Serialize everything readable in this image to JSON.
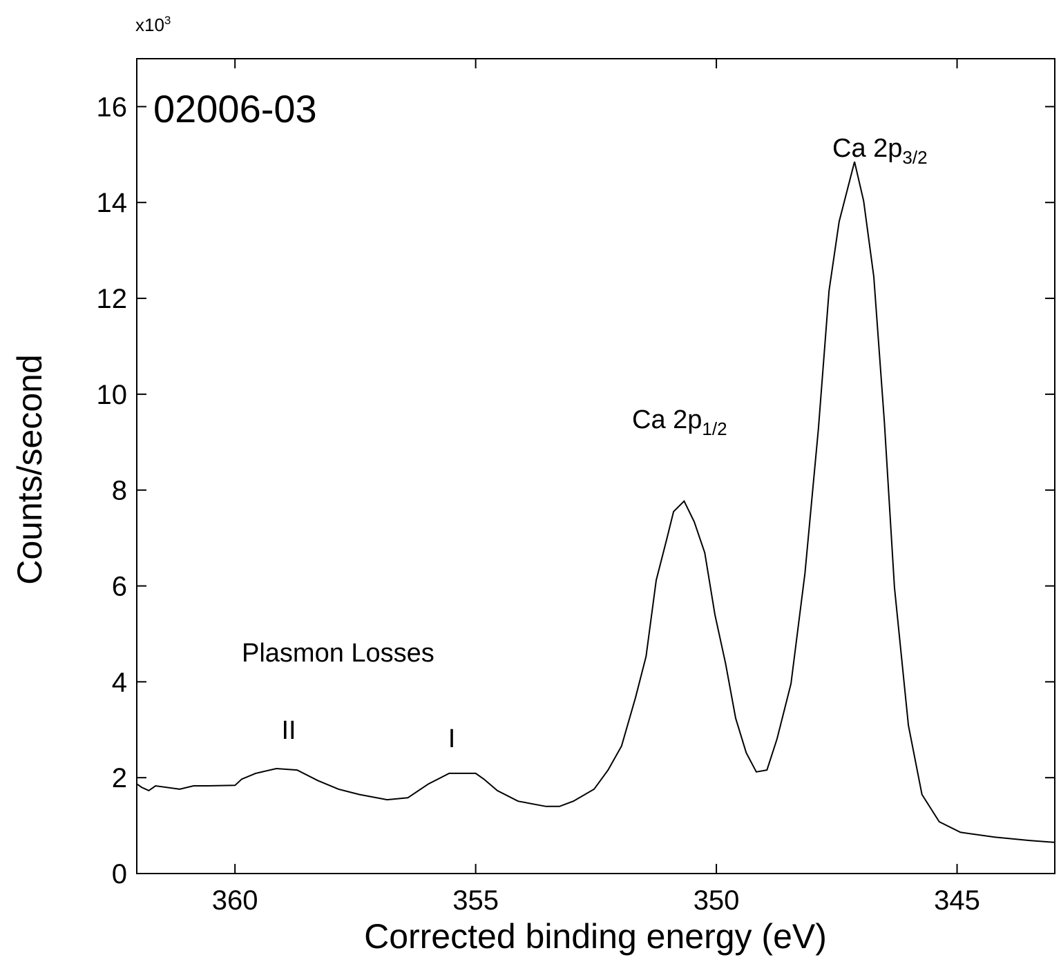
{
  "chart_data": {
    "type": "line",
    "title": "02006-03",
    "xlabel": "Corrected binding energy (eV)",
    "ylabel": "Counts/second",
    "y_multiplier": "x10",
    "y_multiplier_exp": "3",
    "xlim": [
      362.04,
      342.97
    ],
    "x_reversed": true,
    "ylim": [
      0,
      17
    ],
    "x_ticks": [
      "360",
      "355",
      "350",
      "345"
    ],
    "y_ticks": [
      "0",
      "2",
      "4",
      "6",
      "8",
      "10",
      "12",
      "14",
      "16"
    ],
    "grid": false,
    "annotations": {
      "ca32_main": "Ca 2p",
      "ca32_sub": "3/2",
      "ca12_main": "Ca 2p",
      "ca12_sub": "1/2",
      "plasmon": "Plasmon Losses",
      "plasmon_ii": "II",
      "plasmon_i": "I"
    },
    "series": [
      {
        "x": [
          362.04,
          361.94,
          361.79,
          361.65,
          361.15,
          360.86,
          360.57,
          360.0,
          359.86,
          359.57,
          359.14,
          358.71,
          358.28,
          357.85,
          357.42,
          356.84,
          356.41,
          355.98,
          355.55,
          355.0,
          354.83,
          354.55,
          354.12,
          353.54,
          353.26,
          352.97,
          352.54,
          352.25,
          351.97,
          351.68,
          351.46,
          351.25,
          351.03,
          350.89,
          350.67,
          350.46,
          350.24,
          350.03,
          349.81,
          349.6,
          349.38,
          349.17,
          348.95,
          348.74,
          348.45,
          348.16,
          347.88,
          347.66,
          347.45,
          347.13,
          346.94,
          346.73,
          346.51,
          346.3,
          346.01,
          345.73,
          345.37,
          344.93,
          344.22,
          343.5,
          342.97
        ],
        "y": [
          1.87,
          1.8,
          1.73,
          1.83,
          1.76,
          1.83,
          1.83,
          1.84,
          1.97,
          2.09,
          2.19,
          2.16,
          1.94,
          1.76,
          1.65,
          1.54,
          1.58,
          1.87,
          2.09,
          2.09,
          1.97,
          1.73,
          1.51,
          1.4,
          1.4,
          1.51,
          1.76,
          2.16,
          2.66,
          3.67,
          4.53,
          6.12,
          6.98,
          7.55,
          7.77,
          7.34,
          6.69,
          5.4,
          4.39,
          3.24,
          2.52,
          2.12,
          2.16,
          2.81,
          3.96,
          6.26,
          9.28,
          12.16,
          13.6,
          14.85,
          14.03,
          12.45,
          9.42,
          5.97,
          3.09,
          1.65,
          1.08,
          0.86,
          0.76,
          0.69,
          0.65
        ]
      }
    ]
  }
}
